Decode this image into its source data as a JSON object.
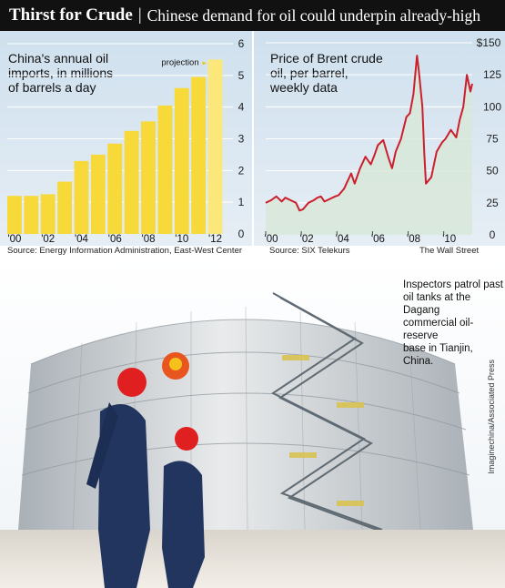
{
  "header": {
    "title": "Thirst for Crude",
    "separator": "|",
    "subtitle": "Chinese demand for oil could underpin already-high"
  },
  "chart_data": [
    {
      "type": "bar",
      "title": "China's annual oil\nimports, in millions\nof barrels a day",
      "categories": [
        "2000",
        "2001",
        "2002",
        "2003",
        "2004",
        "2005",
        "2006",
        "2007",
        "2008",
        "2009",
        "2010",
        "2011",
        "2012"
      ],
      "x_tick_labels": [
        "'00",
        "'02",
        "'04",
        "'06",
        "'08",
        "'10",
        "'12"
      ],
      "values": [
        1.2,
        1.2,
        1.25,
        1.65,
        2.3,
        2.5,
        2.85,
        3.25,
        3.55,
        4.05,
        4.6,
        4.95,
        5.5
      ],
      "projection_index": 12,
      "projection_label": "projection",
      "y_ticks": [
        0,
        1,
        2,
        3,
        4,
        5,
        6
      ],
      "ylim": [
        0,
        6
      ],
      "bar_color": "#f7d93a",
      "projection_color": "#fbe77a",
      "source": "Source: Energy Information Administration, East-West Center"
    },
    {
      "type": "area",
      "title": "Price of Brent crude\noil, per barrel,\nweekly data",
      "x_tick_labels": [
        "'00",
        "'02",
        "'04",
        "'06",
        "'08",
        "'10"
      ],
      "xlim": [
        2000,
        2011.6
      ],
      "x": [
        2000.0,
        2000.3,
        2000.6,
        2000.9,
        2001.1,
        2001.4,
        2001.7,
        2001.9,
        2002.1,
        2002.4,
        2002.7,
        2002.9,
        2003.1,
        2003.3,
        2003.6,
        2003.9,
        2004.1,
        2004.4,
        2004.6,
        2004.8,
        2005.0,
        2005.3,
        2005.6,
        2005.9,
        2006.1,
        2006.3,
        2006.6,
        2006.9,
        2007.1,
        2007.3,
        2007.6,
        2007.9,
        2008.1,
        2008.3,
        2008.5,
        2008.6,
        2008.8,
        2008.9,
        2009.0,
        2009.3,
        2009.6,
        2009.9,
        2010.1,
        2010.4,
        2010.7,
        2010.9,
        2011.1,
        2011.3,
        2011.5,
        2011.6
      ],
      "y": [
        25,
        27,
        30,
        26,
        29,
        27,
        25,
        19,
        20,
        25,
        27,
        29,
        30,
        26,
        28,
        30,
        31,
        36,
        42,
        48,
        40,
        52,
        61,
        55,
        62,
        70,
        74,
        60,
        52,
        65,
        75,
        92,
        95,
        110,
        140,
        128,
        100,
        65,
        40,
        45,
        65,
        72,
        75,
        82,
        76,
        90,
        100,
        125,
        112,
        118
      ],
      "y_ticks": [
        0,
        25,
        50,
        75,
        100,
        125
      ],
      "y_top_label": "$150",
      "ylim": [
        0,
        150
      ],
      "line_color": "#cc1f2d",
      "fill_color": "#d8e8d8",
      "source": "Source: SIX Telekurs",
      "credit": "The Wall Street Journal"
    }
  ],
  "photo": {
    "caption": "Inspectors patrol past\noil tanks at the Dagang\ncommercial oil-reserve\nbase in Tianjin, China.",
    "credit": "Imaginechina/Associated Press"
  }
}
